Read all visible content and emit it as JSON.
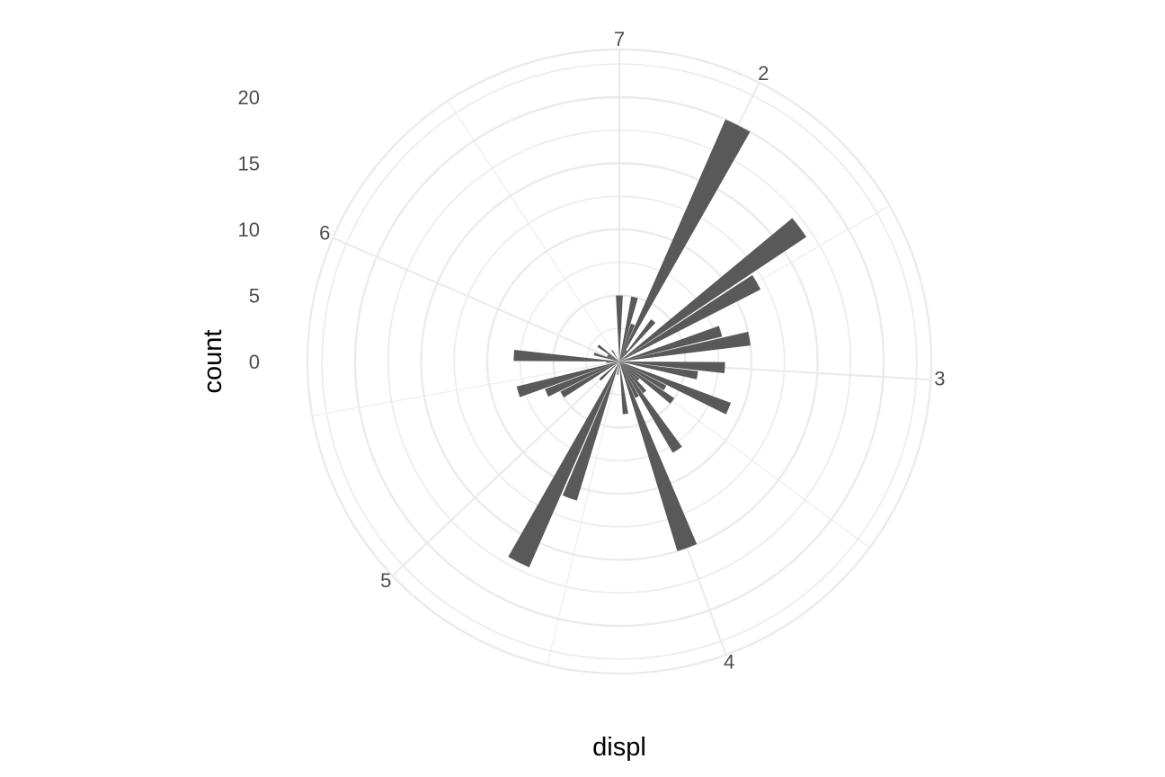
{
  "chart_data": {
    "type": "bar",
    "coord": "polar",
    "xlabel": "displ",
    "ylabel": "count",
    "x_breaks": [
      2,
      3,
      4,
      5,
      6,
      7
    ],
    "x_range": [
      1.6,
      7.0
    ],
    "y_breaks": [
      0,
      5,
      10,
      15,
      20
    ],
    "y_range": [
      0,
      20
    ],
    "grid": true,
    "bar_color": "#595959",
    "grid_color": "#ebebeb",
    "bars": [
      {
        "x": 1.8,
        "count": 5
      },
      {
        "x": 1.9,
        "count": 3
      },
      {
        "x": 2.0,
        "count": 20
      },
      {
        "x": 2.1,
        "count": 1
      },
      {
        "x": 2.2,
        "count": 4
      },
      {
        "x": 2.4,
        "count": 17
      },
      {
        "x": 2.5,
        "count": 12
      },
      {
        "x": 2.7,
        "count": 8
      },
      {
        "x": 2.8,
        "count": 10
      },
      {
        "x": 3.0,
        "count": 8
      },
      {
        "x": 3.1,
        "count": 6
      },
      {
        "x": 3.3,
        "count": 9
      },
      {
        "x": 3.4,
        "count": 4
      },
      {
        "x": 3.5,
        "count": 5
      },
      {
        "x": 3.6,
        "count": 2
      },
      {
        "x": 3.7,
        "count": 3
      },
      {
        "x": 3.8,
        "count": 8
      },
      {
        "x": 3.9,
        "count": 3
      },
      {
        "x": 4.0,
        "count": 15
      },
      {
        "x": 4.2,
        "count": 4
      },
      {
        "x": 4.4,
        "count": 1
      },
      {
        "x": 4.6,
        "count": 11
      },
      {
        "x": 4.7,
        "count": 17
      },
      {
        "x": 5.0,
        "count": 2
      },
      {
        "x": 5.2,
        "count": 5
      },
      {
        "x": 5.3,
        "count": 6
      },
      {
        "x": 5.4,
        "count": 8
      },
      {
        "x": 5.6,
        "count": 1
      },
      {
        "x": 5.7,
        "count": 8
      },
      {
        "x": 5.9,
        "count": 2
      },
      {
        "x": 6.0,
        "count": 1
      },
      {
        "x": 6.1,
        "count": 1
      },
      {
        "x": 6.2,
        "count": 2
      },
      {
        "x": 6.5,
        "count": 1
      },
      {
        "x": 7.0,
        "count": 5
      }
    ]
  }
}
